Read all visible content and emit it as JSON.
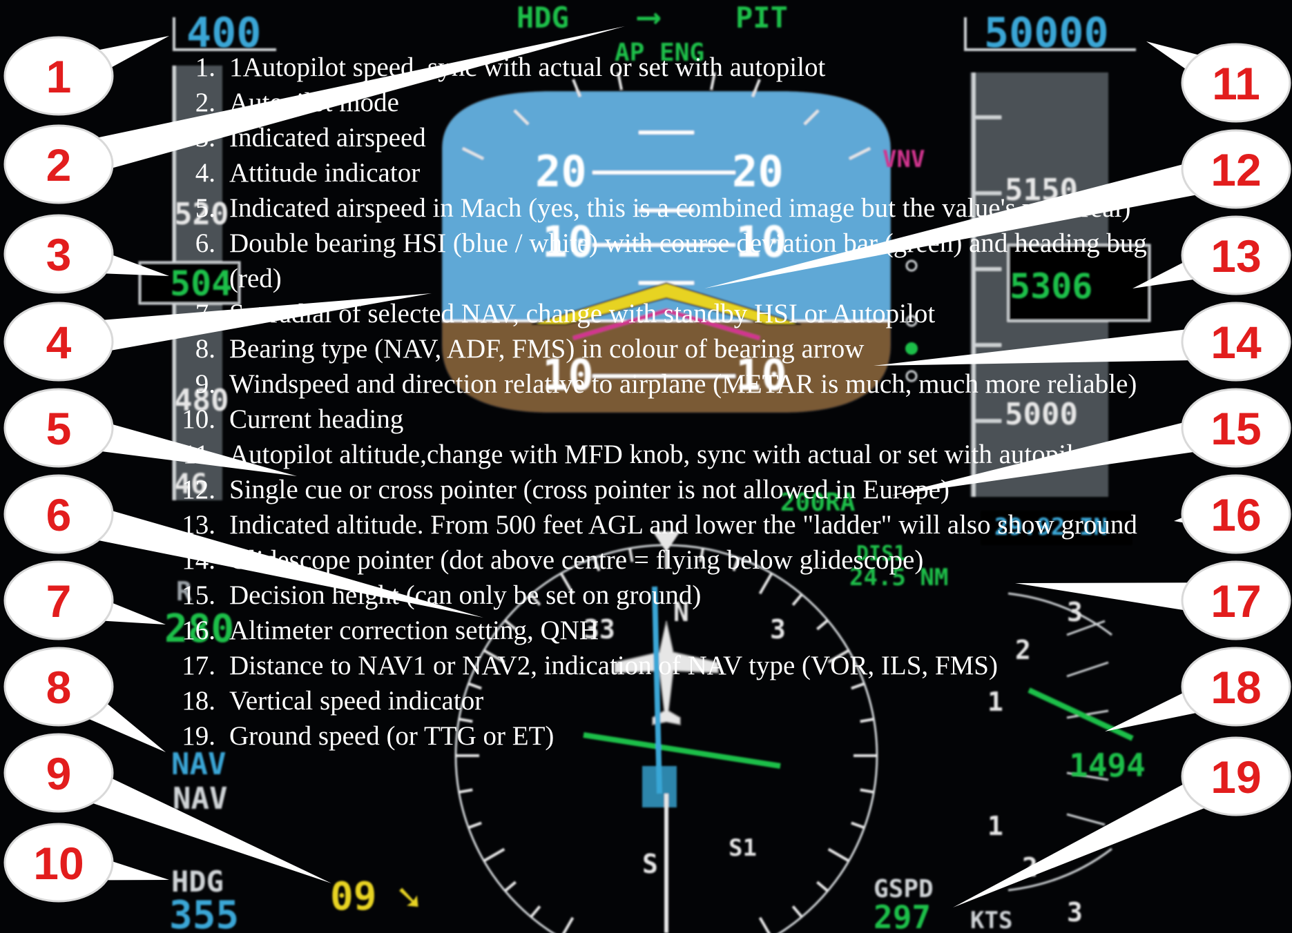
{
  "colors": {
    "background": "#030406",
    "cyan": "#3aa6d6",
    "green": "#1fbf4a",
    "magenta": "#d2348f",
    "sky": "#5fa8d6",
    "ground": "#7a5a36",
    "callout_fill": "#ffffff",
    "callout_text": "#e21d1d"
  },
  "pfd": {
    "speed_bug": "400",
    "hdg_mode": "HDG",
    "arrow_icon": "right-arrow-icon",
    "nav_mode": "PIT",
    "ap_eng": "AP ENG",
    "alt_bug": "50000",
    "vnv": "VNV",
    "pitch_labels": [
      "20",
      "20",
      "10",
      "10",
      "10",
      "10"
    ],
    "alt_tape_top": "5150",
    "alt_current": "5306",
    "alt_tape_bottom": "5000",
    "speed_tape_top": "520",
    "speed_current": "504",
    "speed_tape_lower": "480",
    "speed_tape_low": "46",
    "decision_height": "200RA",
    "qnh": "29.92 IN",
    "dist_label": "DIS1",
    "dist_value": "24.5 NM",
    "mach_label": "R",
    "mach_value": "280",
    "bearing_type_1": "NAV",
    "bearing_type_2": "NAV",
    "vsi_value": "1494",
    "vsi_marks": [
      "3",
      "2",
      "1",
      "1",
      "2",
      "3"
    ],
    "heading_label": "HDG",
    "heading_value": "355",
    "wind_value": "09",
    "wind_arrow_icon": "wind-arrow-icon",
    "gspd_label": "GSPD",
    "gspd_value": "297",
    "gspd_unit": "KTS",
    "compass_marks": [
      "33",
      "N",
      "3",
      "S",
      "S1"
    ]
  },
  "callouts": [
    "1",
    "2",
    "3",
    "4",
    "5",
    "6",
    "7",
    "8",
    "9",
    "10",
    "11",
    "12",
    "13",
    "14",
    "15",
    "16",
    "17",
    "18",
    "19"
  ],
  "legend": [
    {
      "num": "1.",
      "text": "1Autopilot speed, sync with actual or set with autopilot"
    },
    {
      "num": "2.",
      "text": "Autopilot mode"
    },
    {
      "num": "3.",
      "text": "Indicated airspeed"
    },
    {
      "num": "4.",
      "text": "Attitude indicator"
    },
    {
      "num": "5.",
      "text": "Indicated airspeed in Mach (yes, this is a combined image but the value's were real)"
    },
    {
      "num": "6.",
      "text": "Double bearing HSI (blue / white) with course deviation bar (green) and heading bug (red)"
    },
    {
      "num": "7.",
      "text": "Set radial of selected NAV, change with standby HSI or Autopilot"
    },
    {
      "num": "8.",
      "text": "Bearing type (NAV, ADF, FMS) in colour of bearing arrow"
    },
    {
      "num": "9.",
      "text": "Windspeed and direction relative to airplane (METAR is much, much more reliable)"
    },
    {
      "num": "10.",
      "text": "Current heading"
    },
    {
      "num": "11.",
      "text": "Autopilot altitude,change with MFD knob, sync with actual or set with autopilot"
    },
    {
      "num": "12.",
      "text": "Single cue or cross pointer (cross pointer is not allowed in Europe)"
    },
    {
      "num": "13.",
      "text": "Indicated altitude. From 500 feet AGL and lower the \"ladder\" will also show ground"
    },
    {
      "num": "14.",
      "text": "Glidescope pointer (dot above centre = flying below glidescope)"
    },
    {
      "num": "15.",
      "text": "Decision height (can only be set on ground)"
    },
    {
      "num": "16.",
      "text": "Altimeter correction setting, QNH"
    },
    {
      "num": "17.",
      "text": "Distance to NAV1 or NAV2, indication of NAV type (VOR, ILS, FMS)"
    },
    {
      "num": "18.",
      "text": "Vertical speed indicator"
    },
    {
      "num": "19.",
      "text": "Ground speed (or TTG or ET)"
    }
  ]
}
